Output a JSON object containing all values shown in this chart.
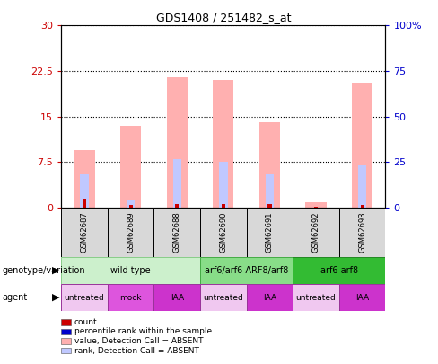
{
  "title": "GDS1408 / 251482_s_at",
  "samples": [
    "GSM62687",
    "GSM62689",
    "GSM62688",
    "GSM62690",
    "GSM62691",
    "GSM62692",
    "GSM62693"
  ],
  "pink_bars": [
    9.5,
    13.5,
    21.5,
    21.0,
    14.0,
    0.8,
    20.5
  ],
  "blue_bars": [
    5.5,
    1.2,
    8.0,
    7.5,
    5.5,
    0.0,
    7.0
  ],
  "red_bars": [
    1.5,
    0.4,
    0.6,
    0.6,
    0.5,
    0.15,
    0.4
  ],
  "ylim_left": [
    0,
    30
  ],
  "ylim_right": [
    0,
    100
  ],
  "yticks_left": [
    0,
    7.5,
    15,
    22.5,
    30
  ],
  "yticks_right": [
    0,
    25,
    50,
    75,
    100
  ],
  "ytick_labels_left": [
    "0",
    "7.5",
    "15",
    "22.5",
    "30"
  ],
  "ytick_labels_right": [
    "0",
    "25",
    "50",
    "75",
    "100%"
  ],
  "genotype_groups": [
    {
      "label": "wild type",
      "cols": [
        0,
        2
      ],
      "color": "#ccf0cc",
      "edge_color": "#88cc88"
    },
    {
      "label": "arf6/arf6 ARF8/arf8",
      "cols": [
        3,
        4
      ],
      "color": "#88dd88",
      "edge_color": "#44aa44"
    },
    {
      "label": "arf6 arf8",
      "cols": [
        5,
        6
      ],
      "color": "#33bb33",
      "edge_color": "#228822"
    }
  ],
  "agent_groups": [
    {
      "label": "untreated",
      "col": 0,
      "color": "#f0c8f0"
    },
    {
      "label": "mock",
      "col": 1,
      "color": "#dd55dd"
    },
    {
      "label": "IAA",
      "col": 2,
      "color": "#cc33cc"
    },
    {
      "label": "untreated",
      "col": 3,
      "color": "#f0c8f0"
    },
    {
      "label": "IAA",
      "col": 4,
      "color": "#cc33cc"
    },
    {
      "label": "untreated",
      "col": 5,
      "color": "#f0c8f0"
    },
    {
      "label": "IAA",
      "col": 6,
      "color": "#cc33cc"
    }
  ],
  "legend_items": [
    {
      "label": "count",
      "color": "#cc0000"
    },
    {
      "label": "percentile rank within the sample",
      "color": "#0000cc"
    },
    {
      "label": "value, Detection Call = ABSENT",
      "color": "#ffb0b0"
    },
    {
      "label": "rank, Detection Call = ABSENT",
      "color": "#c0c8ff"
    }
  ],
  "pink_color": "#ffb0b0",
  "blue_color": "#c0c8ff",
  "red_color": "#cc0000",
  "navy_color": "#0000cc",
  "left_tick_color": "#cc0000",
  "right_tick_color": "#0000cc",
  "bg_color": "#ffffff"
}
